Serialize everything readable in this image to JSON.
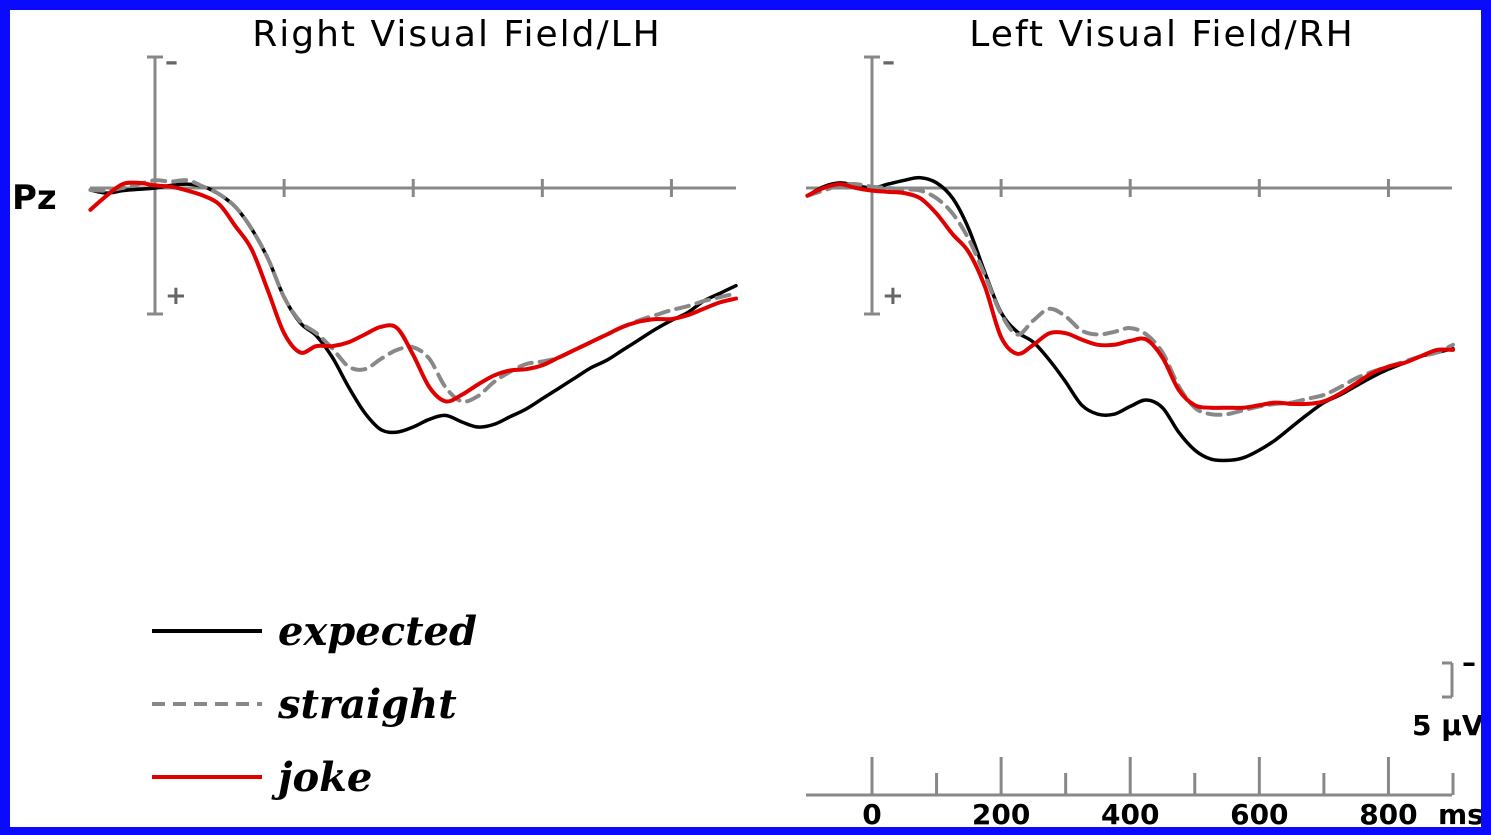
{
  "chart_data": {
    "type": "line",
    "channel": "Pz",
    "x_unit": "ms",
    "xlim": [
      -100,
      900
    ],
    "y_polarity": "negative up",
    "scale_bar": {
      "value": 5,
      "unit": "5 μV",
      "polarity_mark": "–"
    },
    "x_ticks": [
      0,
      200,
      400,
      600,
      800
    ],
    "x_tick_labels": [
      "0",
      "200",
      "400",
      "600",
      "800"
    ],
    "panels": [
      {
        "title": "Right Visual Field/LH",
        "series": [
          {
            "name": "expected",
            "color": "#000000",
            "style": "solid",
            "x": [
              -100,
              -75,
              -50,
              -25,
              0,
              25,
              50,
              75,
              100,
              125,
              150,
              175,
              200,
              225,
              250,
              275,
              300,
              325,
              350,
              375,
              400,
              425,
              450,
              475,
              500,
              525,
              550,
              575,
              600,
              625,
              650,
              675,
              700,
              725,
              750,
              775,
              800,
              825,
              850,
              875,
              900
            ],
            "y": [
              0.15,
              0.4,
              0.2,
              0.1,
              0.0,
              -0.2,
              -0.3,
              -0.1,
              0.5,
              1.5,
              3.2,
              5.5,
              8.5,
              10.5,
              11.5,
              13.2,
              15.5,
              17.5,
              18.8,
              19.0,
              18.6,
              18.0,
              17.7,
              18.2,
              18.6,
              18.4,
              17.8,
              17.2,
              16.4,
              15.6,
              14.8,
              14.0,
              13.4,
              12.6,
              11.8,
              11.0,
              10.3,
              9.7,
              8.8,
              8.2,
              7.6
            ]
          },
          {
            "name": "straight",
            "color": "#888888",
            "style": "dashed",
            "x": [
              -100,
              -75,
              -50,
              -25,
              0,
              25,
              50,
              75,
              100,
              125,
              150,
              175,
              200,
              225,
              250,
              275,
              300,
              325,
              350,
              375,
              400,
              425,
              450,
              475,
              500,
              525,
              550,
              575,
              600,
              625,
              650,
              675,
              700,
              725,
              750,
              775,
              800,
              825,
              850,
              875,
              900
            ],
            "y": [
              0.15,
              0.2,
              0.0,
              -0.3,
              -0.6,
              -0.5,
              -0.6,
              -0.1,
              0.5,
              1.5,
              3.2,
              5.5,
              8.5,
              10.4,
              11.3,
              12.5,
              13.9,
              14.1,
              13.3,
              12.6,
              12.4,
              13.3,
              15.5,
              16.6,
              16.2,
              15.1,
              14.3,
              13.7,
              13.5,
              13.2,
              12.6,
              12.0,
              11.4,
              10.8,
              10.3,
              9.9,
              9.5,
              9.2,
              8.8,
              8.5,
              8.2
            ]
          },
          {
            "name": "joke",
            "color": "#e00000",
            "style": "solid",
            "x": [
              -100,
              -75,
              -50,
              -25,
              0,
              25,
              50,
              75,
              100,
              125,
              150,
              175,
              200,
              225,
              250,
              275,
              300,
              325,
              350,
              375,
              400,
              425,
              450,
              475,
              500,
              525,
              550,
              575,
              600,
              625,
              650,
              675,
              700,
              725,
              750,
              775,
              800,
              825,
              850,
              875,
              900
            ],
            "y": [
              1.7,
              0.6,
              -0.3,
              -0.4,
              -0.2,
              -0.1,
              0.2,
              0.6,
              1.3,
              3.0,
              4.8,
              8.0,
              11.3,
              12.8,
              12.3,
              12.3,
              12.0,
              11.4,
              10.8,
              10.9,
              13.0,
              15.5,
              16.6,
              16.1,
              15.3,
              14.6,
              14.2,
              14.1,
              13.8,
              13.2,
              12.6,
              12.0,
              11.4,
              10.8,
              10.4,
              10.2,
              10.2,
              9.9,
              9.4,
              8.9,
              8.6
            ]
          }
        ]
      },
      {
        "title": "Left Visual Field/RH",
        "series": [
          {
            "name": "expected",
            "color": "#000000",
            "style": "solid",
            "x": [
              -100,
              -75,
              -50,
              -25,
              0,
              25,
              50,
              75,
              100,
              125,
              150,
              175,
              200,
              225,
              250,
              275,
              300,
              325,
              350,
              375,
              400,
              425,
              450,
              475,
              500,
              525,
              550,
              575,
              600,
              625,
              650,
              675,
              700,
              725,
              750,
              775,
              800,
              825,
              850,
              875,
              900
            ],
            "y": [
              0.6,
              -0.1,
              -0.4,
              -0.2,
              0.0,
              -0.3,
              -0.6,
              -0.8,
              -0.4,
              0.8,
              3.2,
              6.6,
              9.7,
              11.2,
              12.0,
              13.4,
              15.1,
              16.9,
              17.6,
              17.6,
              17.0,
              16.5,
              17.1,
              19.0,
              20.4,
              21.1,
              21.2,
              21.0,
              20.4,
              19.6,
              18.6,
              17.6,
              16.7,
              16.1,
              15.4,
              14.7,
              14.1,
              13.6,
              13.1,
              12.8,
              12.5
            ]
          },
          {
            "name": "straight",
            "color": "#888888",
            "style": "dashed",
            "x": [
              -100,
              -75,
              -50,
              -25,
              0,
              25,
              50,
              75,
              100,
              125,
              150,
              175,
              200,
              225,
              250,
              275,
              300,
              325,
              350,
              375,
              400,
              425,
              450,
              475,
              500,
              525,
              550,
              575,
              600,
              625,
              650,
              675,
              700,
              725,
              750,
              775,
              800,
              825,
              850,
              875,
              900
            ],
            "y": [
              0.6,
              0.2,
              -0.2,
              -0.3,
              -0.1,
              0.0,
              0.1,
              0.2,
              0.8,
              2.0,
              4.0,
              6.8,
              9.8,
              11.4,
              10.3,
              9.4,
              10.0,
              11.1,
              11.4,
              11.2,
              10.9,
              11.4,
              12.8,
              15.4,
              17.1,
              17.6,
              17.6,
              17.3,
              17.0,
              16.8,
              16.7,
              16.4,
              16.1,
              15.5,
              14.8,
              14.3,
              13.9,
              13.5,
              13.1,
              12.8,
              12.2
            ]
          },
          {
            "name": "joke",
            "color": "#e00000",
            "style": "solid",
            "x": [
              -100,
              -75,
              -50,
              -25,
              0,
              25,
              50,
              75,
              100,
              125,
              150,
              175,
              200,
              225,
              250,
              275,
              300,
              325,
              350,
              375,
              400,
              425,
              450,
              475,
              500,
              525,
              550,
              575,
              600,
              625,
              650,
              675,
              700,
              725,
              750,
              775,
              800,
              825,
              850,
              875,
              900
            ],
            "y": [
              0.6,
              0.0,
              -0.3,
              0.0,
              0.2,
              0.3,
              0.4,
              0.8,
              2.0,
              3.6,
              5.0,
              7.7,
              11.6,
              12.9,
              12.2,
              11.3,
              11.3,
              11.8,
              12.2,
              12.2,
              11.9,
              11.8,
              13.2,
              15.7,
              16.9,
              17.1,
              17.1,
              17.1,
              16.9,
              16.7,
              16.8,
              16.8,
              16.6,
              16.0,
              15.2,
              14.4,
              13.9,
              13.6,
              13.1,
              12.6,
              12.6
            ]
          }
        ]
      }
    ]
  }
}
